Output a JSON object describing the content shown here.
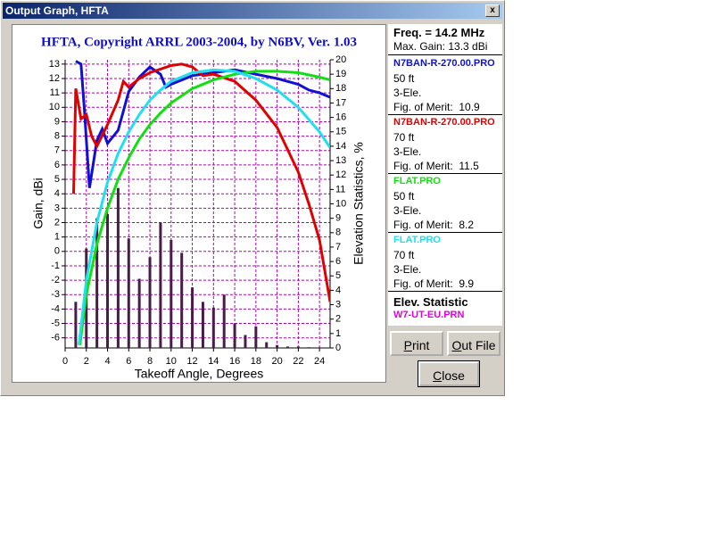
{
  "window": {
    "title": "Output Graph, HFTA"
  },
  "info": {
    "freq": "Freq. = 14.2 MHz",
    "max_gain": "Max. Gain: 13.3 dBi",
    "stat_heading": "Elev. Statistic"
  },
  "buttons": {
    "print": "Print",
    "out_file": "Out File",
    "close": "Close"
  },
  "chart_data": {
    "type": "line",
    "title": "HFTA, Copyright ARRL 2003-2004, by N6BV, Ver. 1.03",
    "x_label": "Takeoff Angle, Degrees",
    "y_label": "Gain, dBi",
    "y2_label": "Elevation Statistics, %",
    "xlim": [
      0,
      25
    ],
    "xticks": [
      0,
      2,
      4,
      6,
      8,
      10,
      12,
      14,
      16,
      18,
      20,
      22,
      24
    ],
    "ylim": [
      -6.7,
      13.3
    ],
    "yticks": [
      -6,
      -5,
      -4,
      -3,
      -2,
      -1,
      0,
      1,
      2,
      3,
      4,
      5,
      6,
      7,
      8,
      9,
      10,
      11,
      12,
      13
    ],
    "y2lim": [
      0,
      20
    ],
    "y2ticks": [
      0,
      1,
      2,
      3,
      4,
      5,
      6,
      7,
      8,
      9,
      10,
      11,
      12,
      13,
      14,
      15,
      16,
      17,
      18,
      19,
      20
    ],
    "grid": true,
    "grid_color": "#b000b0",
    "series": [
      {
        "name": "N7BAN-R-270.00.PRO",
        "height": "50 ft",
        "elements": "3-Ele.",
        "merit": "Fig. of Merit:  10.9",
        "color": "#1010d0",
        "x": [
          1,
          1.5,
          1.8,
          2.3,
          3,
          3.5,
          4,
          5,
          6,
          7,
          8,
          9,
          9.5,
          10,
          12,
          14,
          16,
          18,
          20,
          22,
          23,
          24,
          25
        ],
        "values": [
          13.2,
          13,
          10,
          4.4,
          7.7,
          8.5,
          7.5,
          8.4,
          11.1,
          12.1,
          12.8,
          12.3,
          11.4,
          11.6,
          12.2,
          12.4,
          12.6,
          12.3,
          12,
          11.6,
          11.2,
          11,
          10.7
        ]
      },
      {
        "name": "N7BAN-R-270.00.PRO",
        "height": "70 ft",
        "elements": "3-Ele.",
        "merit": "Fig. of Merit:  11.5",
        "color": "#e00000",
        "x": [
          0.8,
          1,
          1.5,
          2,
          2.5,
          3,
          4,
          5,
          5.5,
          6,
          7,
          8,
          10,
          11,
          12,
          13,
          14,
          16,
          18,
          20,
          22,
          23,
          24,
          25
        ],
        "values": [
          4,
          11.3,
          9.2,
          9.5,
          8,
          7.3,
          8.8,
          10.5,
          11.8,
          11.4,
          12,
          12.4,
          12.9,
          13,
          12.8,
          12.2,
          12.3,
          11.8,
          10.5,
          8.6,
          5.5,
          3.3,
          0.8,
          -3.5
        ]
      },
      {
        "name": "FLAT.PRO",
        "height": "50 ft",
        "elements": "3-Ele.",
        "merit": "Fig. of Merit:  8.2",
        "color": "#10e010",
        "x": [
          1.4,
          2,
          3,
          4,
          5,
          6,
          7,
          8,
          9,
          10,
          12,
          14,
          16,
          18,
          20,
          22,
          24,
          25
        ],
        "values": [
          -6.5,
          -3,
          0.5,
          3,
          5,
          6.5,
          7.8,
          8.8,
          9.6,
          10.3,
          11.3,
          11.9,
          12.3,
          12.5,
          12.5,
          12.4,
          12.1,
          11.9
        ]
      },
      {
        "name": "FLAT.PRO",
        "height": "70 ft",
        "elements": "3-Ele.",
        "merit": "Fig. of Merit:  9.9",
        "color": "#20e0f0",
        "x": [
          1.3,
          2,
          3,
          4,
          5,
          6,
          7,
          8,
          9,
          10,
          12,
          14,
          16,
          18,
          20,
          22,
          24,
          25
        ],
        "values": [
          -6.5,
          -2,
          2,
          4.8,
          6.8,
          8.3,
          9.5,
          10.5,
          11.2,
          11.8,
          12.4,
          12.6,
          12.5,
          12,
          11.2,
          10,
          8.3,
          7.2
        ]
      },
      {
        "name": "W7-UT-EU.PRN",
        "type": "bar",
        "axis": "y2",
        "color": "#4a1c4a",
        "legend_color": "#e000e0",
        "x": [
          1,
          2,
          3,
          4,
          5,
          6,
          7,
          8,
          9,
          10,
          11,
          12,
          13,
          14,
          15,
          16,
          17,
          18,
          19,
          20,
          21,
          22,
          23
        ],
        "values": [
          3.2,
          6.9,
          9,
          9.3,
          11.1,
          7.6,
          4.8,
          6.3,
          8.7,
          7.5,
          6.6,
          4.2,
          3.2,
          2.8,
          3.7,
          1.7,
          0.9,
          1.5,
          0.4,
          0.2,
          0.1,
          0.1,
          0.05
        ]
      }
    ]
  }
}
